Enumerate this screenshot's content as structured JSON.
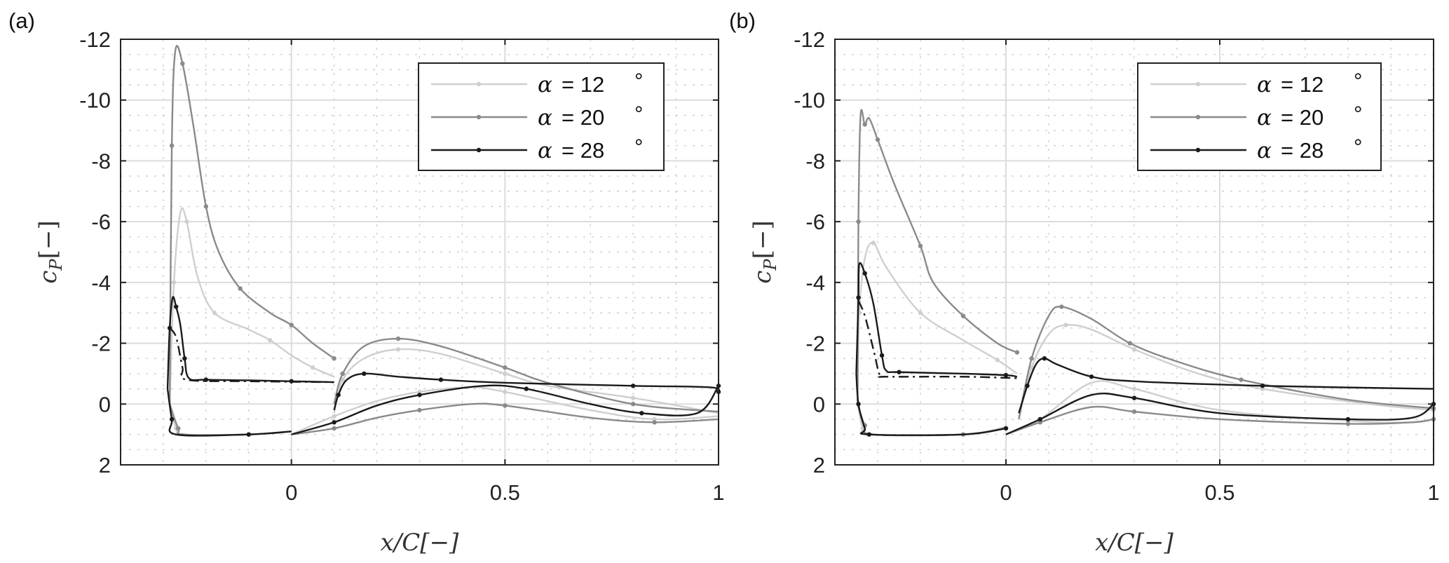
{
  "chart_data": [
    {
      "type": "line",
      "panel_label": "(a)",
      "xlabel": "x/C[−]",
      "ylabel": {
        "main": "c",
        "sub": "P",
        "unit": "[−]"
      },
      "xlim": [
        -0.4,
        1
      ],
      "ylim": [
        -12,
        2
      ],
      "y_reversed": true,
      "grid": true,
      "legend_placement": "top-right",
      "x_ticks": [
        {
          "v": 0,
          "label": "0"
        },
        {
          "v": 0.5,
          "label": "0.5"
        },
        {
          "v": 1,
          "label": "1"
        }
      ],
      "y_ticks": [
        {
          "v": -12,
          "label": "-12"
        },
        {
          "v": -10,
          "label": "-10"
        },
        {
          "v": -8,
          "label": "-8"
        },
        {
          "v": -6,
          "label": "-6"
        },
        {
          "v": -4,
          "label": "-4"
        },
        {
          "v": -2,
          "label": "-2"
        },
        {
          "v": 0,
          "label": "0"
        },
        {
          "v": 2,
          "label": "2"
        }
      ],
      "series": [
        {
          "name": "α = 12 °",
          "alpha": "α",
          "value": "= 12",
          "unit": "°",
          "color": "#cfcfcf",
          "slat_upper": [
            [
              -0.285,
              0
            ],
            [
              -0.275,
              -4
            ],
            [
              -0.26,
              -6.3
            ],
            [
              -0.245,
              -6.0
            ],
            [
              -0.22,
              -4.2
            ],
            [
              -0.18,
              -3.0
            ],
            [
              -0.1,
              -2.45
            ],
            [
              -0.05,
              -2.1
            ],
            [
              0,
              -1.6
            ],
            [
              0.05,
              -1.2
            ],
            [
              0.1,
              -0.9
            ]
          ],
          "slat_lower": [
            [
              -0.285,
              0
            ],
            [
              -0.27,
              0.8
            ],
            [
              -0.25,
              1.0
            ],
            [
              -0.1,
              1.0
            ],
            [
              0,
              0.9
            ]
          ],
          "main_upper": [
            [
              0.1,
              0.3
            ],
            [
              0.12,
              -0.8
            ],
            [
              0.17,
              -1.5
            ],
            [
              0.25,
              -1.8
            ],
            [
              0.35,
              -1.65
            ],
            [
              0.5,
              -1.0
            ],
            [
              0.6,
              -0.6
            ],
            [
              0.8,
              -0.2
            ],
            [
              1,
              0.3
            ]
          ],
          "main_lower": [
            [
              0,
              1.0
            ],
            [
              0.1,
              0.4
            ],
            [
              0.2,
              -0.1
            ],
            [
              0.3,
              -0.4
            ],
            [
              0.42,
              -0.55
            ],
            [
              0.5,
              -0.4
            ],
            [
              0.7,
              0.2
            ],
            [
              0.85,
              0.5
            ],
            [
              1,
              0.4
            ]
          ]
        },
        {
          "name": "α = 20 °",
          "alpha": "α",
          "value": "= 20",
          "unit": "°",
          "color": "#8a8a8a",
          "slat_upper": [
            [
              -0.285,
              0
            ],
            [
              -0.28,
              -8.5
            ],
            [
              -0.272,
              -11.6
            ],
            [
              -0.255,
              -11.2
            ],
            [
              -0.23,
              -9.2
            ],
            [
              -0.2,
              -6.5
            ],
            [
              -0.17,
              -5.0
            ],
            [
              -0.12,
              -3.8
            ],
            [
              -0.05,
              -3.0
            ],
            [
              0,
              -2.6
            ],
            [
              0.05,
              -2.0
            ],
            [
              0.1,
              -1.5
            ]
          ],
          "slat_lower": [
            [
              -0.285,
              0
            ],
            [
              -0.265,
              0.8
            ],
            [
              -0.25,
              1.0
            ],
            [
              -0.1,
              1.0
            ],
            [
              0,
              0.9
            ]
          ],
          "main_upper": [
            [
              0.1,
              0.0
            ],
            [
              0.12,
              -1.0
            ],
            [
              0.17,
              -1.9
            ],
            [
              0.25,
              -2.15
            ],
            [
              0.35,
              -1.9
            ],
            [
              0.5,
              -1.2
            ],
            [
              0.6,
              -0.7
            ],
            [
              0.8,
              0
            ],
            [
              1,
              0.25
            ]
          ],
          "main_lower": [
            [
              0,
              1.0
            ],
            [
              0.1,
              0.8
            ],
            [
              0.2,
              0.45
            ],
            [
              0.3,
              0.2
            ],
            [
              0.42,
              0
            ],
            [
              0.5,
              0.05
            ],
            [
              0.7,
              0.45
            ],
            [
              0.85,
              0.6
            ],
            [
              1,
              0.5
            ]
          ]
        },
        {
          "name": "α = 28 °",
          "alpha": "α",
          "value": "= 28",
          "unit": "°",
          "color": "#1a1a1a",
          "slat_upper": [
            [
              -0.29,
              -0.5
            ],
            [
              -0.285,
              -2.5
            ],
            [
              -0.278,
              -3.5
            ],
            [
              -0.27,
              -3.2
            ],
            [
              -0.26,
              -2.6
            ],
            [
              -0.25,
              -1.5
            ],
            [
              -0.24,
              -0.85
            ],
            [
              -0.2,
              -0.8
            ],
            [
              -0.1,
              -0.78
            ],
            [
              0,
              -0.75
            ],
            [
              0.1,
              -0.72
            ]
          ],
          "slat_upper_dashed": [
            [
              -0.285,
              -2.5
            ],
            [
              -0.27,
              -2.2
            ],
            [
              -0.255,
              -1.2
            ],
            [
              -0.245,
              -0.8
            ],
            [
              -0.1,
              -0.75
            ],
            [
              0.1,
              -0.72
            ]
          ],
          "slat_lower": [
            [
              -0.29,
              -0.5
            ],
            [
              -0.28,
              0.5
            ],
            [
              -0.27,
              1.0
            ],
            [
              -0.1,
              1.0
            ],
            [
              0,
              0.9
            ]
          ],
          "main_upper": [
            [
              0.1,
              0.2
            ],
            [
              0.11,
              -0.3
            ],
            [
              0.13,
              -0.8
            ],
            [
              0.17,
              -1.0
            ],
            [
              0.25,
              -0.9
            ],
            [
              0.35,
              -0.8
            ],
            [
              0.5,
              -0.7
            ],
            [
              0.8,
              -0.6
            ],
            [
              0.98,
              -0.55
            ],
            [
              1,
              -0.4
            ]
          ],
          "main_lower": [
            [
              0,
              1.0
            ],
            [
              0.1,
              0.6
            ],
            [
              0.2,
              0.05
            ],
            [
              0.3,
              -0.3
            ],
            [
              0.45,
              -0.6
            ],
            [
              0.55,
              -0.5
            ],
            [
              0.7,
              0
            ],
            [
              0.82,
              0.3
            ],
            [
              0.95,
              0.3
            ],
            [
              1,
              -0.6
            ]
          ]
        }
      ]
    },
    {
      "type": "line",
      "panel_label": "(b)",
      "xlabel": "x/C[−]",
      "ylabel": {
        "main": "c",
        "sub": "P",
        "unit": "[−]"
      },
      "xlim": [
        -0.4,
        1
      ],
      "ylim": [
        -12,
        2
      ],
      "y_reversed": true,
      "grid": true,
      "legend_placement": "top-right",
      "x_ticks": [
        {
          "v": 0,
          "label": "0"
        },
        {
          "v": 0.5,
          "label": "0.5"
        },
        {
          "v": 1,
          "label": "1"
        }
      ],
      "y_ticks": [
        {
          "v": -12,
          "label": "-12"
        },
        {
          "v": -10,
          "label": "-10"
        },
        {
          "v": -8,
          "label": "-8"
        },
        {
          "v": -6,
          "label": "-6"
        },
        {
          "v": -4,
          "label": "-4"
        },
        {
          "v": -2,
          "label": "-2"
        },
        {
          "v": 0,
          "label": "0"
        },
        {
          "v": 2,
          "label": "2"
        }
      ],
      "series": [
        {
          "name": "α = 12 °",
          "alpha": "α",
          "value": "= 12",
          "unit": "°",
          "color": "#cfcfcf",
          "slat_upper": [
            [
              -0.347,
              0
            ],
            [
              -0.343,
              -3
            ],
            [
              -0.33,
              -4.8
            ],
            [
              -0.31,
              -5.3
            ],
            [
              -0.28,
              -4.5
            ],
            [
              -0.2,
              -3.0
            ],
            [
              -0.1,
              -2.1
            ],
            [
              -0.02,
              -1.45
            ],
            [
              0.026,
              -1.0
            ]
          ],
          "slat_lower": [
            [
              -0.347,
              0
            ],
            [
              -0.335,
              0.8
            ],
            [
              -0.32,
              1.0
            ],
            [
              -0.1,
              1.0
            ],
            [
              0,
              0.75
            ]
          ],
          "main_upper": [
            [
              0.03,
              0.5
            ],
            [
              0.06,
              -1.2
            ],
            [
              0.1,
              -2.3
            ],
            [
              0.14,
              -2.6
            ],
            [
              0.2,
              -2.45
            ],
            [
              0.3,
              -1.8
            ],
            [
              0.45,
              -1.0
            ],
            [
              0.6,
              -0.5
            ],
            [
              0.85,
              0
            ],
            [
              1,
              0.2
            ]
          ],
          "main_lower": [
            [
              0,
              1.0
            ],
            [
              0.08,
              0.5
            ],
            [
              0.2,
              -0.7
            ],
            [
              0.3,
              -0.5
            ],
            [
              0.5,
              0.2
            ],
            [
              0.8,
              0.55
            ],
            [
              0.95,
              0.6
            ],
            [
              1,
              0.5
            ]
          ]
        },
        {
          "name": "α = 20 °",
          "alpha": "α",
          "value": "= 20",
          "unit": "°",
          "color": "#8a8a8a",
          "slat_upper": [
            [
              -0.347,
              0
            ],
            [
              -0.345,
              -6
            ],
            [
              -0.34,
              -9.5
            ],
            [
              -0.33,
              -9.2
            ],
            [
              -0.32,
              -9.4
            ],
            [
              -0.3,
              -8.7
            ],
            [
              -0.26,
              -7.2
            ],
            [
              -0.2,
              -5.2
            ],
            [
              -0.17,
              -4.0
            ],
            [
              -0.1,
              -2.9
            ],
            [
              -0.02,
              -2.0
            ],
            [
              0.026,
              -1.7
            ]
          ],
          "slat_lower": [
            [
              -0.347,
              0
            ],
            [
              -0.33,
              0.7
            ],
            [
              -0.31,
              1.0
            ],
            [
              -0.1,
              1.0
            ],
            [
              0,
              0.8
            ]
          ],
          "main_upper": [
            [
              0.03,
              0.5
            ],
            [
              0.06,
              -1.5
            ],
            [
              0.1,
              -2.9
            ],
            [
              0.13,
              -3.2
            ],
            [
              0.2,
              -2.8
            ],
            [
              0.29,
              -2.0
            ],
            [
              0.4,
              -1.4
            ],
            [
              0.55,
              -0.8
            ],
            [
              0.8,
              -0.14
            ],
            [
              1,
              0.14
            ]
          ],
          "main_lower": [
            [
              0,
              1.0
            ],
            [
              0.08,
              0.6
            ],
            [
              0.2,
              0.1
            ],
            [
              0.3,
              0.25
            ],
            [
              0.5,
              0.5
            ],
            [
              0.8,
              0.65
            ],
            [
              0.95,
              0.6
            ],
            [
              1,
              0.5
            ]
          ]
        },
        {
          "name": "α = 28 °",
          "alpha": "α",
          "value": "= 28",
          "unit": "°",
          "color": "#1a1a1a",
          "slat_upper": [
            [
              -0.35,
              -1
            ],
            [
              -0.345,
              -3.5
            ],
            [
              -0.343,
              -4.6
            ],
            [
              -0.33,
              -4.3
            ],
            [
              -0.31,
              -3.3
            ],
            [
              -0.29,
              -1.6
            ],
            [
              -0.28,
              -1.1
            ],
            [
              -0.25,
              -1.05
            ],
            [
              -0.1,
              -1.0
            ],
            [
              0,
              -0.95
            ],
            [
              0.026,
              -0.9
            ]
          ],
          "slat_upper_dashed": [
            [
              -0.345,
              -3.4
            ],
            [
              -0.33,
              -2.9
            ],
            [
              -0.31,
              -1.8
            ],
            [
              -0.295,
              -0.95
            ],
            [
              -0.28,
              -0.9
            ],
            [
              -0.1,
              -0.9
            ],
            [
              0.026,
              -0.85
            ]
          ],
          "slat_lower": [
            [
              -0.35,
              -1
            ],
            [
              -0.345,
              0
            ],
            [
              -0.33,
              0.8
            ],
            [
              -0.32,
              1.0
            ],
            [
              -0.1,
              1.0
            ],
            [
              0,
              0.8
            ]
          ],
          "main_upper": [
            [
              0.03,
              0.3
            ],
            [
              0.05,
              -0.6
            ],
            [
              0.07,
              -1.3
            ],
            [
              0.09,
              -1.5
            ],
            [
              0.12,
              -1.3
            ],
            [
              0.2,
              -0.9
            ],
            [
              0.3,
              -0.75
            ],
            [
              0.6,
              -0.6
            ],
            [
              1,
              -0.5
            ]
          ],
          "main_lower": [
            [
              0,
              1.0
            ],
            [
              0.08,
              0.5
            ],
            [
              0.2,
              -0.3
            ],
            [
              0.3,
              -0.2
            ],
            [
              0.5,
              0.3
            ],
            [
              0.8,
              0.5
            ],
            [
              0.95,
              0.45
            ],
            [
              1,
              0
            ]
          ]
        }
      ]
    }
  ]
}
